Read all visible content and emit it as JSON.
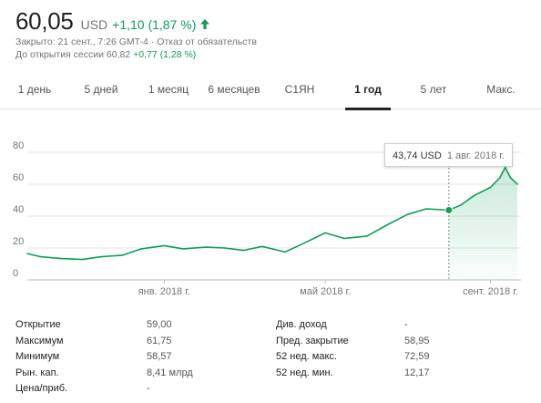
{
  "header": {
    "price": "60,05",
    "currency": "USD",
    "change": "+1,10 (1,87 %)",
    "closed_line": "Закрыто: 21 сент., 7:26 GMT-4",
    "disclaimer": "Отказ от обязательств",
    "premarket_label": "До открытия сессии 60,82",
    "premarket_change": "+0,77 (1,28 %)",
    "arrow_icon": "arrow-up-icon",
    "accent_color": "#0f9d58"
  },
  "tabs": [
    {
      "label": "1 день"
    },
    {
      "label": "5 дней"
    },
    {
      "label": "1 месяц"
    },
    {
      "label": "6 месяцев"
    },
    {
      "label": "С1ЯН"
    },
    {
      "label": "1 год",
      "active": true
    },
    {
      "label": "5 лет"
    },
    {
      "label": "Макс."
    }
  ],
  "tooltip": {
    "value": "43,74 USD",
    "date": "1 авг. 2018 г."
  },
  "chart_data": {
    "type": "area",
    "title": "",
    "xlabel": "",
    "ylabel": "",
    "ylim": [
      0,
      80
    ],
    "yticks": [
      "80",
      "60",
      "40",
      "20",
      "0"
    ],
    "xtick_labels": [
      "янв. 2018 г.",
      "май 2018 г.",
      "сент. 2018 г."
    ],
    "x": [
      "2017-09-21",
      "2017-10-01",
      "2017-10-15",
      "2017-11-01",
      "2017-11-15",
      "2017-12-01",
      "2017-12-15",
      "2018-01-01",
      "2018-01-15",
      "2018-02-01",
      "2018-02-15",
      "2018-03-01",
      "2018-03-15",
      "2018-04-01",
      "2018-04-15",
      "2018-05-01",
      "2018-05-15",
      "2018-06-01",
      "2018-06-15",
      "2018-07-01",
      "2018-07-15",
      "2018-08-01",
      "2018-08-10",
      "2018-08-20",
      "2018-09-01",
      "2018-09-08",
      "2018-09-12",
      "2018-09-16",
      "2018-09-21"
    ],
    "series": [
      {
        "values": [
          16.5,
          14.5,
          13.5,
          12.8,
          14.5,
          15.5,
          19.5,
          21.5,
          19.5,
          20.5,
          20.0,
          18.5,
          21.0,
          17.5,
          23.0,
          29.5,
          26.0,
          27.5,
          34.0,
          41.0,
          44.5,
          43.74,
          47.0,
          53.0,
          58.0,
          64.0,
          70.5,
          64.0,
          60.05
        ]
      }
    ],
    "highlight": {
      "date": "2018-08-01",
      "value": 43.74
    },
    "line_color": "#0f9d58",
    "grid": true
  },
  "stats": {
    "left": [
      {
        "label": "Открытие",
        "value": "59,00"
      },
      {
        "label": "Максимум",
        "value": "61,75"
      },
      {
        "label": "Минимум",
        "value": "58,57"
      },
      {
        "label": "Рын. кап.",
        "value": "8,41 млрд"
      },
      {
        "label": "Цена/приб.",
        "value": "-"
      }
    ],
    "right": [
      {
        "label": "Див. доход",
        "value": "-"
      },
      {
        "label": "Пред. закрытие",
        "value": "58,95"
      },
      {
        "label": "52 нед. макс.",
        "value": "72,59"
      },
      {
        "label": "52 нед. мин.",
        "value": "12,17"
      }
    ]
  }
}
